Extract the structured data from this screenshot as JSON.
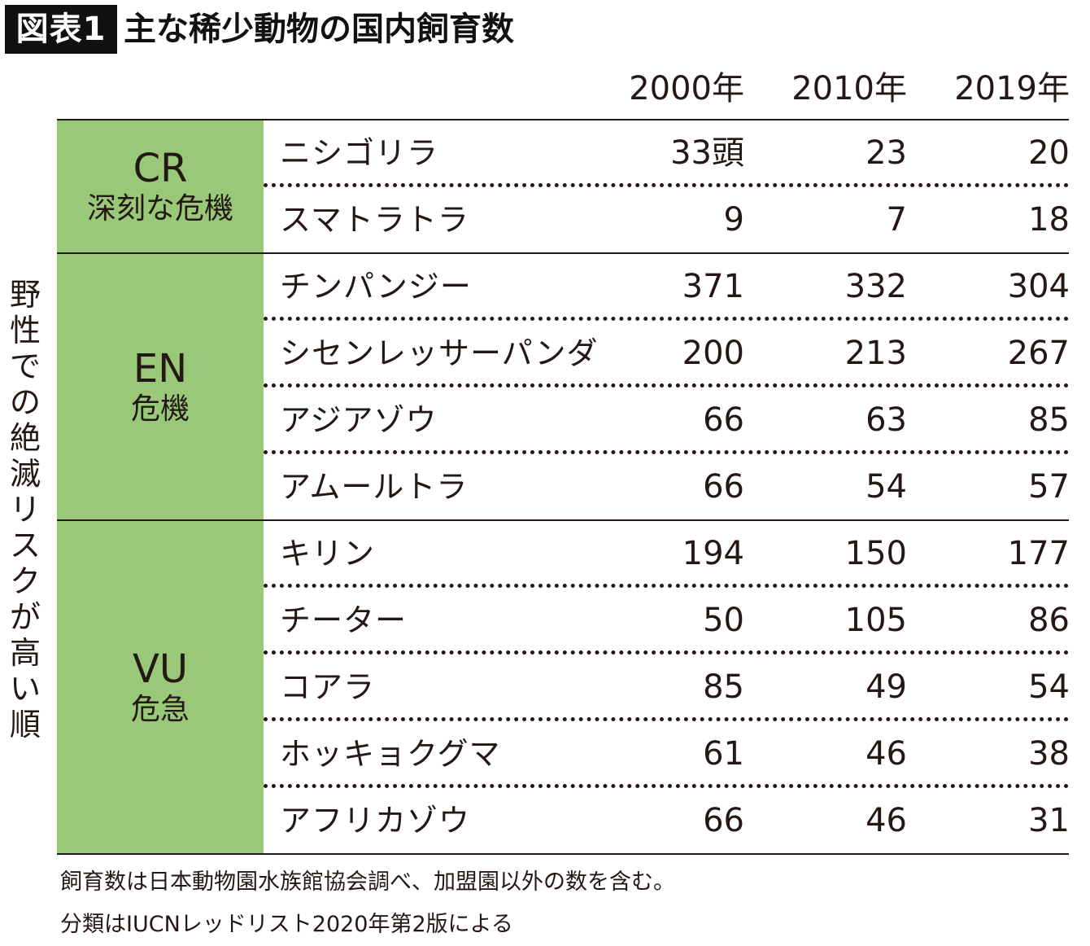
{
  "header": {
    "tag": "図表1",
    "title": "主な稀少動物の国内飼育数"
  },
  "axis_note": "野性での絶滅リスクが高い順",
  "columns": [
    "2000年",
    "2010年",
    "2019年"
  ],
  "colors": {
    "group_fill": "#99c978",
    "text": "#231815",
    "tag_bg": "#111111"
  },
  "groups": [
    {
      "code": "CR",
      "label": "深刻な危機"
    },
    {
      "code": "EN",
      "label": "危機"
    },
    {
      "code": "VU",
      "label": "危急"
    }
  ],
  "chart_data": {
    "type": "table",
    "title": "主な稀少動物の国内飼育数",
    "columns": [
      "2000年",
      "2010年",
      "2019年"
    ],
    "rows": [
      {
        "group": "CR",
        "animal": "ニシゴリラ",
        "values": [
          "33頭",
          "23",
          "20"
        ]
      },
      {
        "group": "CR",
        "animal": "スマトラトラ",
        "values": [
          "9",
          "7",
          "18"
        ]
      },
      {
        "group": "EN",
        "animal": "チンパンジー",
        "values": [
          "371",
          "332",
          "304"
        ]
      },
      {
        "group": "EN",
        "animal": "シセンレッサーパンダ",
        "values": [
          "200",
          "213",
          "267"
        ]
      },
      {
        "group": "EN",
        "animal": "アジアゾウ",
        "values": [
          "66",
          "63",
          "85"
        ]
      },
      {
        "group": "EN",
        "animal": "アムールトラ",
        "values": [
          "66",
          "54",
          "57"
        ]
      },
      {
        "group": "VU",
        "animal": "キリン",
        "values": [
          "194",
          "150",
          "177"
        ]
      },
      {
        "group": "VU",
        "animal": "チーター",
        "values": [
          "50",
          "105",
          "86"
        ]
      },
      {
        "group": "VU",
        "animal": "コアラ",
        "values": [
          "85",
          "49",
          "54"
        ]
      },
      {
        "group": "VU",
        "animal": "ホッキョクグマ",
        "values": [
          "61",
          "46",
          "38"
        ]
      },
      {
        "group": "VU",
        "animal": "アフリカゾウ",
        "values": [
          "66",
          "46",
          "31"
        ]
      }
    ]
  },
  "notes": [
    "飼育数は日本動物園水族館協会調べ、加盟園以外の数を含む。",
    "分類はIUCNレッドリスト2020年第2版による"
  ]
}
